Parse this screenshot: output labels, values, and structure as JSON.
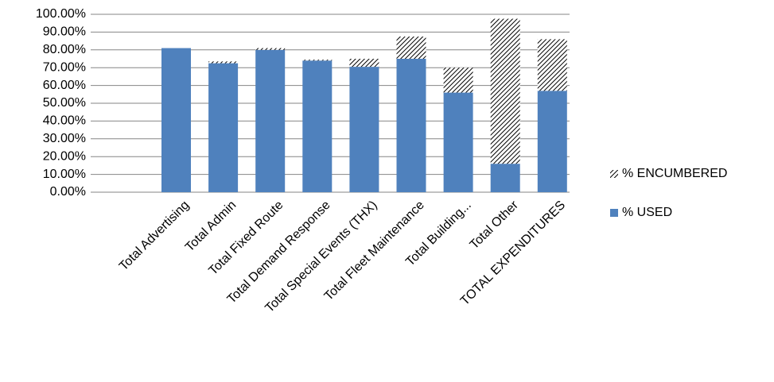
{
  "chart_data": {
    "type": "stacked_bar",
    "categories": [
      "Total Advertising",
      "Total Admin",
      "Total Fixed Route",
      "Total Demand Response",
      "Total Special Events (THX)",
      "Total Fleet Maintenance",
      "Total Building...",
      "Total Other",
      "TOTAL EXPENDITURES"
    ],
    "series": [
      {
        "name": "% USED",
        "color": "#4f81bd",
        "values": [
          81,
          72.5,
          80,
          74,
          70.5,
          75,
          56,
          16,
          57
        ]
      },
      {
        "name": "% ENCUMBERED",
        "color": "#000000",
        "pattern": "hatch",
        "values": [
          0,
          1,
          1,
          0.5,
          4.5,
          12.5,
          14,
          81.5,
          29
        ]
      }
    ],
    "ylim": [
      0,
      100
    ],
    "yticks": [
      {
        "value": 0,
        "label": "0.00%"
      },
      {
        "value": 10,
        "label": "10.00%"
      },
      {
        "value": 20,
        "label": "20.00%"
      },
      {
        "value": 30,
        "label": "30.00%"
      },
      {
        "value": 40,
        "label": "40.00%"
      },
      {
        "value": 50,
        "label": "50.00%"
      },
      {
        "value": 60,
        "label": "60.00%"
      },
      {
        "value": 70,
        "label": "70.00%"
      },
      {
        "value": 80,
        "label": "80.00%"
      },
      {
        "value": 90,
        "label": "90.00%"
      },
      {
        "value": 100,
        "label": "100.00%"
      }
    ],
    "grid": true,
    "legend": "right"
  }
}
